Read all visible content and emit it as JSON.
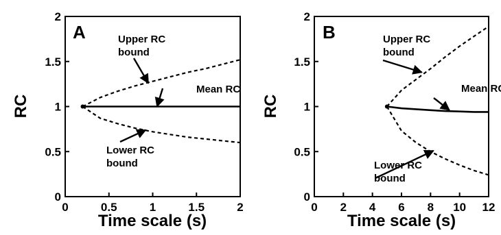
{
  "chart_data": [
    {
      "type": "line",
      "panel_label": "A",
      "xlabel": "Time scale (s)",
      "ylabel": "RC",
      "xlim": [
        0,
        2
      ],
      "ylim": [
        0,
        2
      ],
      "x_ticks": [
        0,
        0.5,
        1,
        1.5,
        2
      ],
      "x_tick_labels": [
        "0",
        "0.5",
        "1",
        "1.5",
        "2"
      ],
      "y_ticks": [
        0,
        0.5,
        1,
        1.5,
        2
      ],
      "y_tick_labels": [
        "0",
        "0.5",
        "1",
        "1.5",
        "2"
      ],
      "grid": false,
      "series": [
        {
          "key": "upper",
          "style": "dashed",
          "x": [
            0.2,
            0.4,
            0.6,
            0.8,
            1.0,
            1.2,
            1.4,
            1.6,
            1.8,
            2.0
          ],
          "y": [
            1.0,
            1.1,
            1.17,
            1.23,
            1.28,
            1.33,
            1.38,
            1.42,
            1.47,
            1.52
          ]
        },
        {
          "key": "mean",
          "style": "solid",
          "x": [
            0.2,
            2.0
          ],
          "y": [
            1.0,
            1.0
          ]
        },
        {
          "key": "lower",
          "style": "dashed",
          "x": [
            0.2,
            0.4,
            0.6,
            0.8,
            1.0,
            1.2,
            1.4,
            1.6,
            1.8,
            2.0
          ],
          "y": [
            1.0,
            0.87,
            0.81,
            0.76,
            0.72,
            0.69,
            0.66,
            0.64,
            0.62,
            0.6
          ]
        }
      ],
      "annotations": [
        {
          "lines": [
            "Upper RC",
            "bound"
          ],
          "target": [
            0.95,
            1.26
          ]
        },
        {
          "lines": [
            "Mean RC"
          ],
          "target": [
            1.05,
            1.0
          ]
        },
        {
          "lines": [
            "Lower RC",
            "bound"
          ],
          "target": [
            0.92,
            0.74
          ]
        }
      ]
    },
    {
      "type": "line",
      "panel_label": "B",
      "xlabel": "Time scale (s)",
      "ylabel": "RC",
      "xlim": [
        0,
        12
      ],
      "ylim": [
        0,
        2
      ],
      "x_ticks": [
        0,
        2,
        4,
        6,
        8,
        10,
        12
      ],
      "x_tick_labels": [
        "0",
        "2",
        "4",
        "6",
        "8",
        "10",
        "12"
      ],
      "y_ticks": [
        0,
        0.5,
        1,
        1.5,
        2
      ],
      "y_tick_labels": [
        "0",
        "0.5",
        "1",
        "1.5",
        "2"
      ],
      "grid": false,
      "series": [
        {
          "key": "upper",
          "style": "dashed",
          "x": [
            5,
            6,
            7,
            8,
            9,
            10,
            11,
            12
          ],
          "y": [
            1.0,
            1.18,
            1.3,
            1.42,
            1.55,
            1.67,
            1.78,
            1.89
          ]
        },
        {
          "key": "mean",
          "style": "solid",
          "x": [
            5,
            6,
            7,
            8,
            9,
            10,
            11,
            12
          ],
          "y": [
            1.0,
            0.98,
            0.97,
            0.96,
            0.95,
            0.945,
            0.94,
            0.94
          ]
        },
        {
          "key": "lower",
          "style": "dashed",
          "x": [
            5,
            6,
            7,
            8,
            9,
            10,
            11,
            12
          ],
          "y": [
            1.0,
            0.73,
            0.6,
            0.5,
            0.42,
            0.35,
            0.29,
            0.24
          ]
        }
      ],
      "annotations": [
        {
          "lines": [
            "Upper RC",
            "bound"
          ],
          "target": [
            7.4,
            1.38
          ]
        },
        {
          "lines": [
            "Mean RC"
          ],
          "target": [
            9.3,
            0.96
          ]
        },
        {
          "lines": [
            "Lower RC",
            "bound"
          ],
          "target": [
            8.2,
            0.51
          ]
        }
      ]
    }
  ]
}
